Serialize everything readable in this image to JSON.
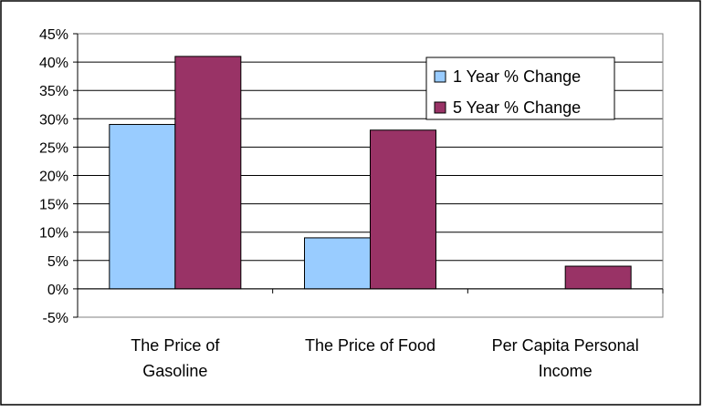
{
  "chart_data": {
    "type": "bar",
    "title": "",
    "xlabel": "",
    "ylabel": "",
    "categories": [
      [
        "The Price of",
        "Gasoline"
      ],
      [
        "The Price of Food"
      ],
      [
        "Per Capita Personal",
        "Income"
      ]
    ],
    "series": [
      {
        "name": "1 Year % Change",
        "color": "#99ccff",
        "values": [
          29,
          9,
          0
        ]
      },
      {
        "name": "5 Year % Change",
        "color": "#993366",
        "values": [
          41,
          28,
          4
        ]
      }
    ],
    "ylim": [
      -5,
      45
    ],
    "ytick_step": 5,
    "ytick_labels": [
      "-5%",
      "0%",
      "5%",
      "10%",
      "15%",
      "20%",
      "25%",
      "30%",
      "35%",
      "40%",
      "45%"
    ],
    "grid": true,
    "legend_position": "top-right"
  }
}
